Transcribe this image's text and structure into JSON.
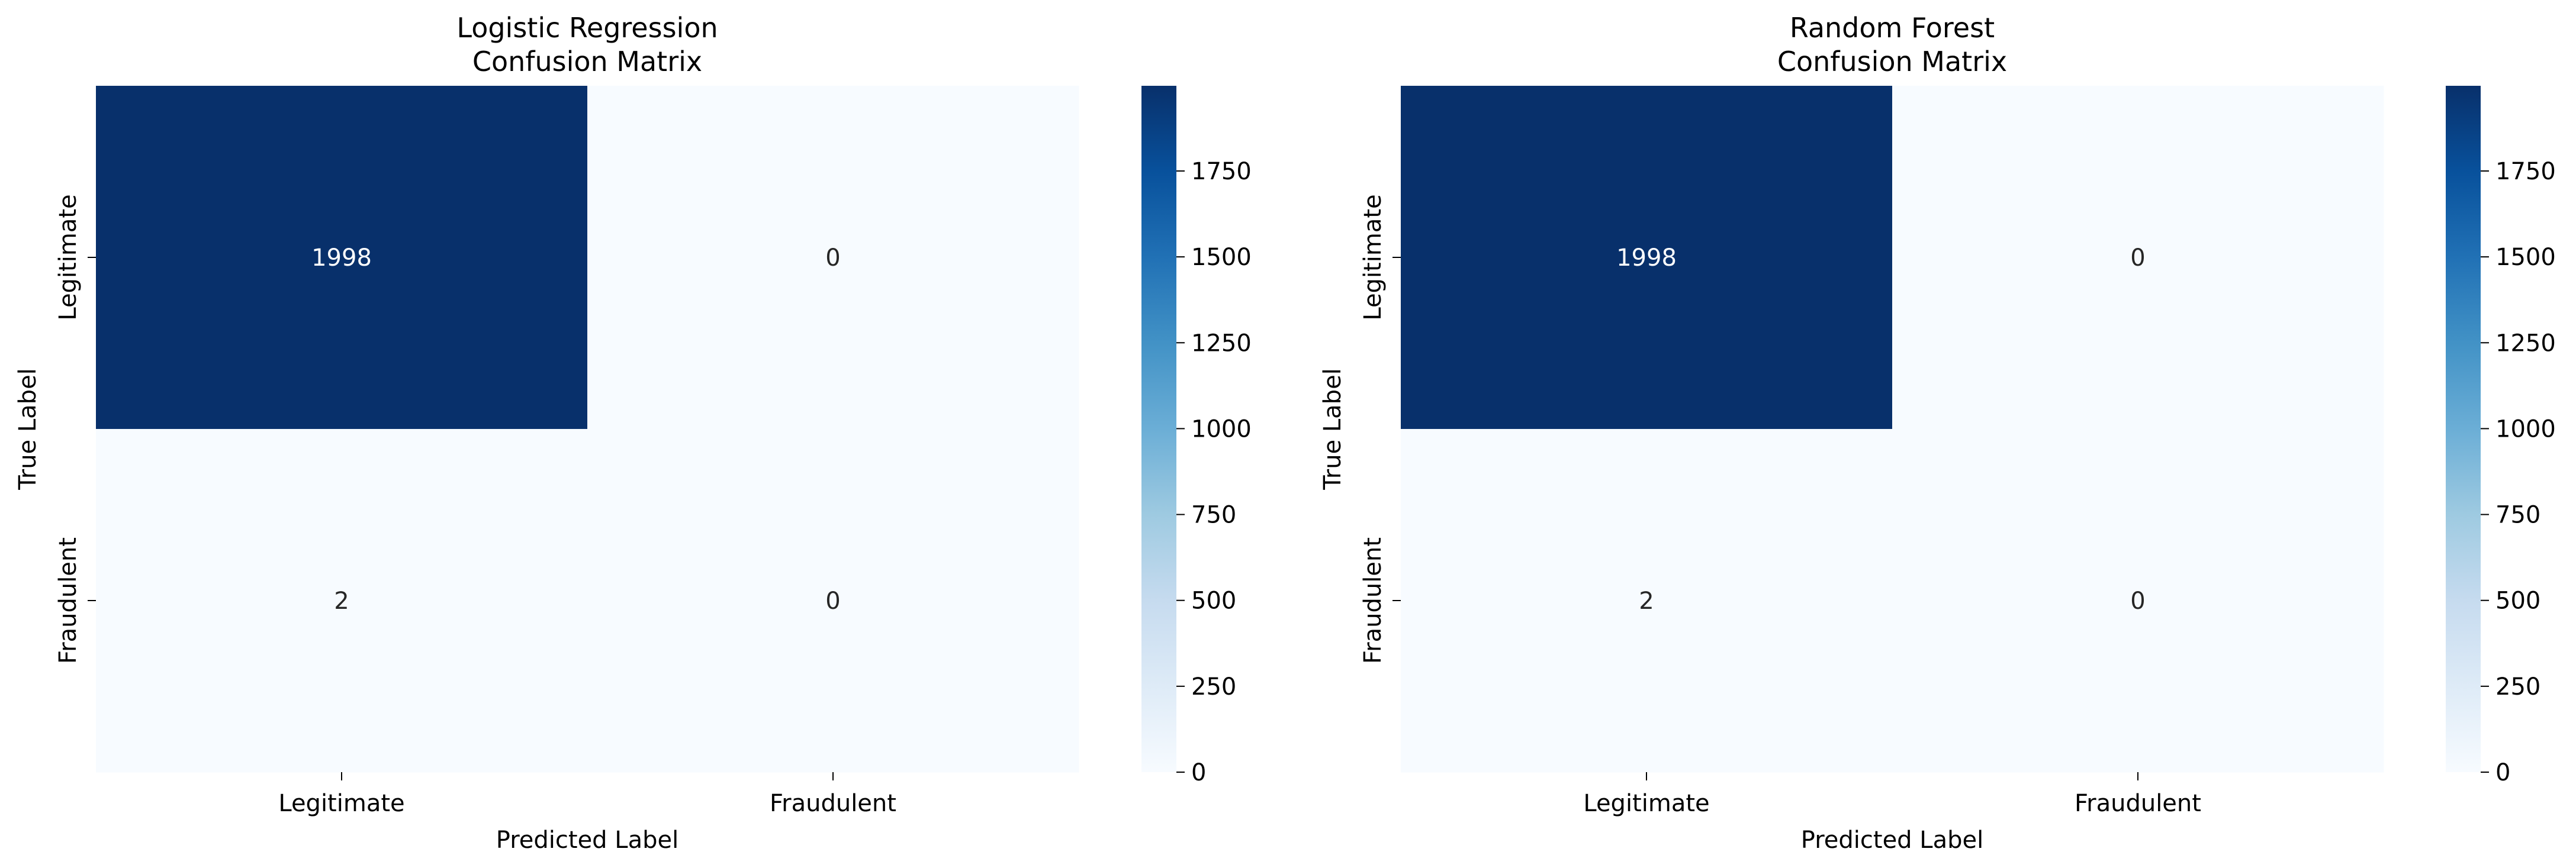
{
  "chart_data": [
    {
      "type": "heatmap",
      "title": "Logistic Regression\nConfusion Matrix",
      "xlabel": "Predicted Label",
      "ylabel": "True Label",
      "x_categories": [
        "Legitimate",
        "Fraudulent"
      ],
      "y_categories": [
        "Legitimate",
        "Fraudulent"
      ],
      "values": [
        [
          1998,
          0
        ],
        [
          2,
          0
        ]
      ],
      "colormap": "Blues",
      "colorbar": {
        "range": [
          0,
          1998
        ],
        "ticks": [
          0,
          250,
          500,
          750,
          1000,
          1250,
          1500,
          1750
        ]
      }
    },
    {
      "type": "heatmap",
      "title": "Random Forest\nConfusion Matrix",
      "xlabel": "Predicted Label",
      "ylabel": "True Label",
      "x_categories": [
        "Legitimate",
        "Fraudulent"
      ],
      "y_categories": [
        "Legitimate",
        "Fraudulent"
      ],
      "values": [
        [
          1998,
          0
        ],
        [
          2,
          0
        ]
      ],
      "colormap": "Blues",
      "colorbar": {
        "range": [
          0,
          1998
        ],
        "ticks": [
          0,
          250,
          500,
          750,
          1000,
          1250,
          1500,
          1750
        ]
      }
    }
  ],
  "colors": {
    "cmap": [
      "#f7fbff",
      "#deebf7",
      "#c6dbef",
      "#9ecae1",
      "#6baed6",
      "#4292c6",
      "#2171b5",
      "#08519c",
      "#08306b"
    ],
    "annotation_dark": "#262626",
    "annotation_light": "#ffffff",
    "text": "#000000"
  }
}
